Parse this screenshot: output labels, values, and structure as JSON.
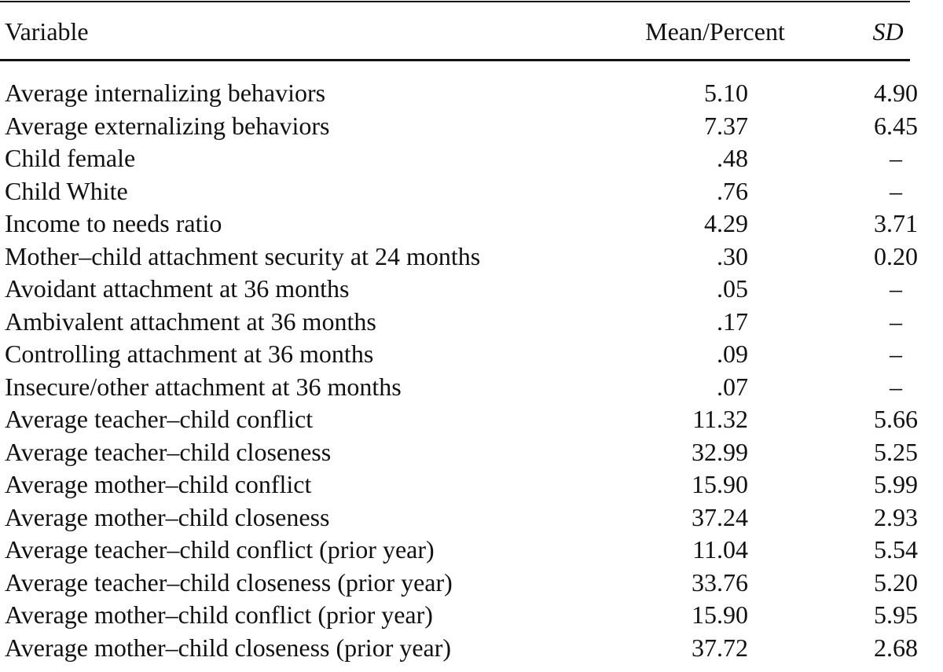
{
  "table": {
    "header": [
      "Variable",
      "Mean/Percent",
      "SD"
    ],
    "rows": [
      [
        "Average internalizing behaviors",
        "5.10",
        "4.90"
      ],
      [
        "Average externalizing behaviors",
        "7.37",
        "6.45"
      ],
      [
        "Child female",
        ".48",
        "–"
      ],
      [
        "Child White",
        ".76",
        "–"
      ],
      [
        "Income to needs ratio",
        "4.29",
        "3.71"
      ],
      [
        "Mother–child attachment security at 24 months",
        ".30",
        "0.20"
      ],
      [
        "Avoidant attachment at 36 months",
        ".05",
        "–"
      ],
      [
        "Ambivalent attachment at 36 months",
        ".17",
        "–"
      ],
      [
        "Controlling attachment at 36 months",
        ".09",
        "–"
      ],
      [
        "Insecure/other attachment at 36 months",
        ".07",
        "–"
      ],
      [
        "Average teacher–child conflict",
        "11.32",
        "5.66"
      ],
      [
        "Average teacher–child closeness",
        "32.99",
        "5.25"
      ],
      [
        "Average mother–child conflict",
        "15.90",
        "5.99"
      ],
      [
        "Average mother–child closeness",
        "37.24",
        "2.93"
      ],
      [
        "Average teacher–child conflict (prior year)",
        "11.04",
        "5.54"
      ],
      [
        "Average teacher–child closeness (prior year)",
        "33.76",
        "5.20"
      ],
      [
        "Average mother–child conflict (prior year)",
        "15.90",
        "5.95"
      ],
      [
        "Average mother–child closeness (prior year)",
        "37.72",
        "2.68"
      ]
    ]
  }
}
